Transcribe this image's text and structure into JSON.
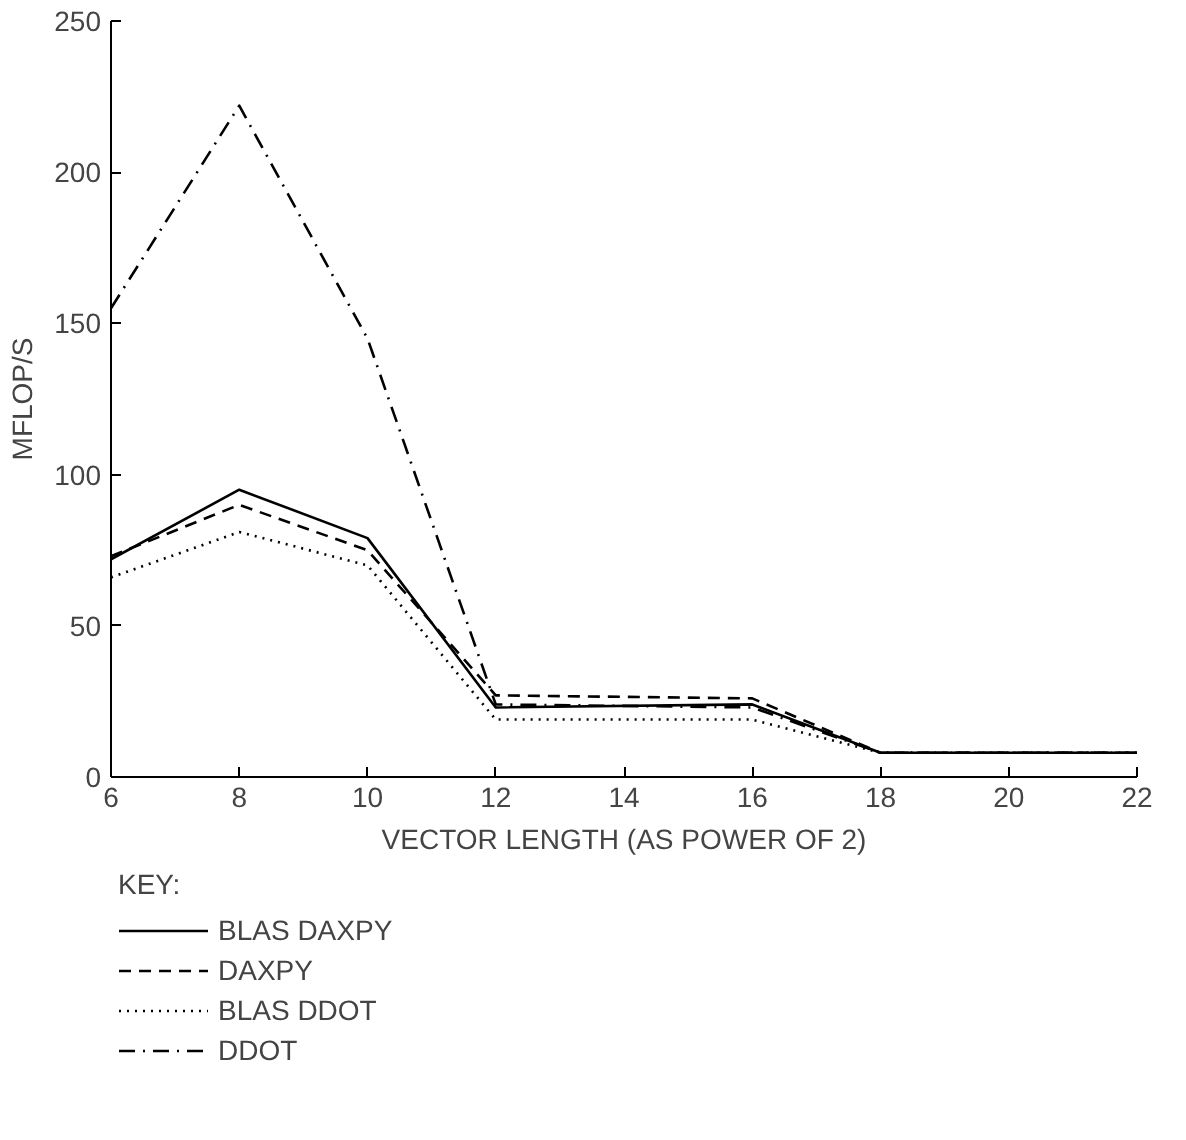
{
  "chart_data": {
    "type": "line",
    "xlabel": "VECTOR LENGTH (AS POWER OF 2)",
    "ylabel": "MFLOP/S",
    "legend_title": "KEY:",
    "legend": "bottom left",
    "grid": false,
    "marker": "none",
    "xlim": [
      6,
      22
    ],
    "xticks": [
      6,
      8,
      10,
      12,
      14,
      16,
      18,
      20,
      22
    ],
    "ylim": [
      0,
      250
    ],
    "yticks": [
      0,
      50,
      100,
      150,
      200,
      250
    ],
    "x": [
      6,
      8,
      10,
      12,
      16,
      18,
      22
    ],
    "series": [
      {
        "name": "BLAS DAXPY",
        "color": "#000000",
        "line_style": "solid",
        "values": [
          72,
          95,
          79,
          23,
          24,
          8,
          8
        ]
      },
      {
        "name": "DAXPY",
        "color": "#000000",
        "line_style": "dashed",
        "values": [
          73,
          90,
          75,
          27,
          26,
          8,
          8
        ]
      },
      {
        "name": "BLAS DDOT",
        "color": "#000000",
        "line_style": "dotted",
        "values": [
          66,
          81,
          70,
          19,
          19,
          8,
          8
        ]
      },
      {
        "name": "DDOT",
        "color": "#000000",
        "line_style": "dashdot",
        "values": [
          155,
          222,
          145,
          24,
          23,
          8,
          8
        ]
      }
    ]
  }
}
